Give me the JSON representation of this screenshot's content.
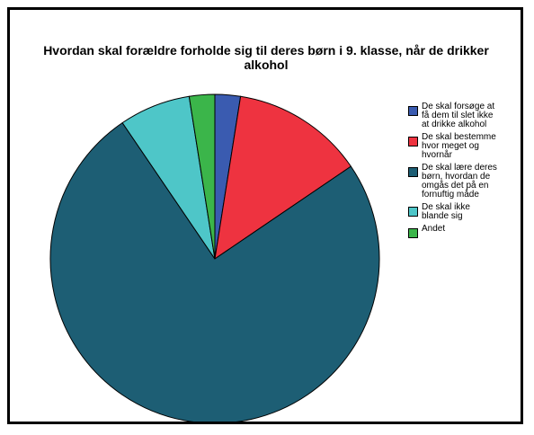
{
  "chart_data": {
    "type": "pie",
    "title": "Hvordan skal forældre forholde sig til deres børn i 9. klasse, når de drikker alkohol",
    "categories": [
      "De skal forsøge at få dem til slet ikke at drikke alkohol",
      "De skal bestemme hvor meget og hvornår",
      "De skal lære deres børn, hvordan de omgås det på en fornuftig måde",
      "De skal ikke blande sig",
      "Andet"
    ],
    "values": [
      2.5,
      13,
      75,
      7,
      2.5
    ],
    "colors": [
      "#3a5bb0",
      "#ee3340",
      "#1d5e74",
      "#4ec6c8",
      "#3bb54a"
    ],
    "legend": "right"
  }
}
